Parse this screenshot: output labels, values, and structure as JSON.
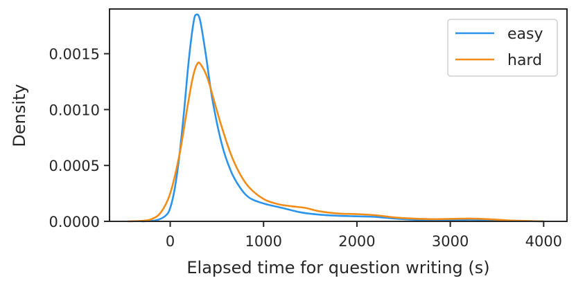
{
  "chart_data": {
    "type": "line",
    "title": "",
    "xlabel": "Elapsed time for question writing (s)",
    "ylabel": "Density",
    "xlim": [
      -650,
      4250
    ],
    "ylim": [
      0,
      0.0019
    ],
    "xticks": [
      0,
      1000,
      2000,
      3000,
      4000
    ],
    "xtick_labels": [
      "0",
      "1000",
      "2000",
      "3000",
      "4000"
    ],
    "yticks": [
      0.0,
      0.0005,
      0.001,
      0.0015
    ],
    "ytick_labels": [
      "0.0000",
      "0.0005",
      "0.0010",
      "0.0015"
    ],
    "grid": false,
    "legend": {
      "position": "top-right"
    },
    "series": [
      {
        "name": "easy",
        "color": "#2b93ea",
        "points": [
          [
            -300,
            0
          ],
          [
            -150,
            1e-05
          ],
          [
            -50,
            5e-05
          ],
          [
            0,
            0.00012
          ],
          [
            50,
            0.0003
          ],
          [
            100,
            0.0006
          ],
          [
            150,
            0.001
          ],
          [
            200,
            0.00145
          ],
          [
            250,
            0.00178
          ],
          [
            280,
            0.00185
          ],
          [
            320,
            0.0018
          ],
          [
            380,
            0.0015
          ],
          [
            450,
            0.0011
          ],
          [
            550,
            0.0007
          ],
          [
            650,
            0.00045
          ],
          [
            750,
            0.0003
          ],
          [
            850,
            0.00021
          ],
          [
            1000,
            0.00016
          ],
          [
            1200,
            0.00012
          ],
          [
            1400,
            8e-05
          ],
          [
            1600,
            6e-05
          ],
          [
            1800,
            5e-05
          ],
          [
            2000,
            4.5e-05
          ],
          [
            2200,
            4e-05
          ],
          [
            2400,
            2.5e-05
          ],
          [
            2600,
            1.5e-05
          ],
          [
            2800,
            1e-05
          ],
          [
            3000,
            1.2e-05
          ],
          [
            3200,
            1.5e-05
          ],
          [
            3400,
            1.3e-05
          ],
          [
            3600,
            8e-06
          ],
          [
            3800,
            3e-06
          ],
          [
            4000,
            0
          ]
        ]
      },
      {
        "name": "hard",
        "color": "#f28c18",
        "points": [
          [
            -450,
            0
          ],
          [
            -300,
            5e-06
          ],
          [
            -200,
            2e-05
          ],
          [
            -100,
            8e-05
          ],
          [
            0,
            0.00025
          ],
          [
            100,
            0.0006
          ],
          [
            180,
            0.001
          ],
          [
            240,
            0.00128
          ],
          [
            290,
            0.00141
          ],
          [
            330,
            0.0014
          ],
          [
            400,
            0.00128
          ],
          [
            480,
            0.00105
          ],
          [
            550,
            0.00085
          ],
          [
            650,
            0.0006
          ],
          [
            750,
            0.00042
          ],
          [
            850,
            0.0003
          ],
          [
            1000,
            0.0002
          ],
          [
            1150,
            0.000155
          ],
          [
            1300,
            0.000135
          ],
          [
            1450,
            0.00012
          ],
          [
            1600,
            9e-05
          ],
          [
            1800,
            7e-05
          ],
          [
            2000,
            6.5e-05
          ],
          [
            2200,
            5.5e-05
          ],
          [
            2400,
            3.5e-05
          ],
          [
            2600,
            2.5e-05
          ],
          [
            2800,
            2e-05
          ],
          [
            3000,
            2.2e-05
          ],
          [
            3200,
            2.5e-05
          ],
          [
            3400,
            2e-05
          ],
          [
            3600,
            1e-05
          ],
          [
            3800,
            4e-06
          ],
          [
            4000,
            0
          ]
        ]
      }
    ]
  }
}
